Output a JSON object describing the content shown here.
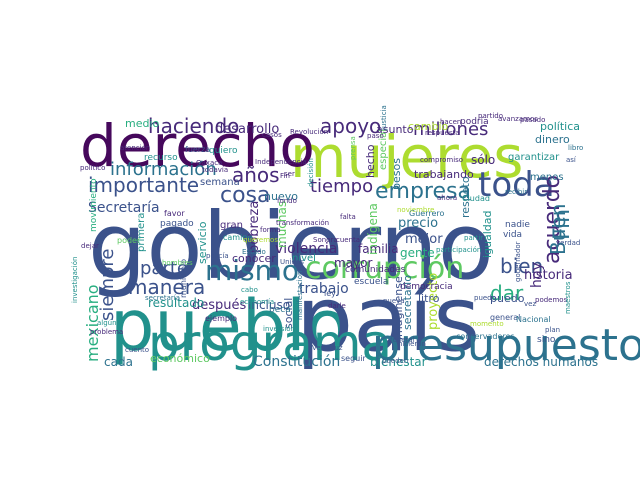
{
  "word_cloud": {
    "palette": {
      "dark_purple": "#46085c",
      "purple": "#472a7a",
      "indigo": "#3b528b",
      "blue": "#2c728e",
      "teal": "#21918c",
      "green": "#28ae80",
      "light_green": "#5ec962",
      "yellow_green": "#addc30",
      "yellow": "#c7e020"
    },
    "words": [
      {
        "text": "gobierno"
      },
      {
        "text": "pueblo"
      },
      {
        "text": "país"
      },
      {
        "text": "mujeres"
      },
      {
        "text": "derecho"
      },
      {
        "text": "programa"
      },
      {
        "text": "presupuesto"
      },
      {
        "text": "corrupción"
      },
      {
        "text": "mismo"
      },
      {
        "text": "toda"
      },
      {
        "text": "empresa"
      },
      {
        "text": "importante"
      },
      {
        "text": "información"
      },
      {
        "text": "haciendo"
      },
      {
        "text": "millones"
      },
      {
        "text": "apoyo"
      },
      {
        "text": "tiempo"
      },
      {
        "text": "acuerdo"
      },
      {
        "text": "Buen"
      },
      {
        "text": "Fin"
      },
      {
        "text": "años"
      },
      {
        "text": "cosa"
      },
      {
        "text": "manera"
      },
      {
        "text": "parte"
      },
      {
        "text": "bien"
      },
      {
        "text": "hoy"
      },
      {
        "text": "dar"
      },
      {
        "text": "siempre"
      },
      {
        "text": "mexicano"
      },
      {
        "text": "Secretaría"
      },
      {
        "text": "desarrollo"
      },
      {
        "text": "cambio"
      },
      {
        "text": "política"
      },
      {
        "text": "dinero"
      },
      {
        "text": "violencia"
      },
      {
        "text": "familia"
      },
      {
        "text": "semana"
      },
      {
        "text": "trabajo"
      },
      {
        "text": "Constitución"
      },
      {
        "text": "derechos humanos"
      },
      {
        "text": "bienestar"
      },
      {
        "text": "cada"
      },
      {
        "text": "económico"
      },
      {
        "text": "después"
      },
      {
        "text": "incluso"
      },
      {
        "text": "resultado"
      },
      {
        "text": "historia"
      },
      {
        "text": "proyecto"
      },
      {
        "text": "precio"
      },
      {
        "text": "mejor"
      },
      {
        "text": "gente"
      },
      {
        "text": "indígena"
      },
      {
        "text": "trabajando"
      },
      {
        "text": "sólo"
      },
      {
        "text": "hecho"
      },
      {
        "text": "servicio"
      },
      {
        "text": "conocer"
      },
      {
        "text": "pobreza"
      },
      {
        "text": "medio"
      },
      {
        "text": "nuevo"
      },
      {
        "text": "muchas"
      },
      {
        "text": "mayor"
      },
      {
        "text": "social"
      },
      {
        "text": "secretario"
      },
      {
        "text": "imaginense"
      },
      {
        "text": "litro"
      },
      {
        "text": "puedo"
      },
      {
        "text": "igualdad"
      },
      {
        "text": "respeto"
      },
      {
        "text": "especial"
      },
      {
        "text": "garantizar"
      },
      {
        "text": "asunto"
      },
      {
        "text": "menos"
      },
      {
        "text": "podría"
      },
      {
        "text": "quiero"
      },
      {
        "text": "fuerza"
      },
      {
        "text": "recurso"
      },
      {
        "text": "primera"
      },
      {
        "text": "pagado"
      },
      {
        "text": "gran"
      },
      {
        "text": "favor"
      },
      {
        "text": "movimiento"
      },
      {
        "text": "poder"
      },
      {
        "text": "ley"
      },
      {
        "text": "democracia"
      },
      {
        "text": "escuela"
      },
      {
        "text": "comunidades"
      },
      {
        "text": "sino"
      },
      {
        "text": "general"
      },
      {
        "text": "nadie"
      },
      {
        "text": "vida"
      },
      {
        "text": "Nacional"
      },
      {
        "text": "conservadores"
      },
      {
        "text": "seguir"
      },
      {
        "text": "ejemplo"
      },
      {
        "text": "municipio"
      },
      {
        "text": "Independencia"
      },
      {
        "text": "Revolución"
      },
      {
        "text": "pesos"
      },
      {
        "text": "libro"
      },
      {
        "text": "compromiso"
      },
      {
        "text": "justicia"
      },
      {
        "text": "partido"
      },
      {
        "text": "nivel"
      },
      {
        "text": "camino"
      },
      {
        "text": "beca"
      },
      {
        "text": "Estado"
      },
      {
        "text": "nueva"
      },
      {
        "text": "Ciudad"
      },
      {
        "text": "cuenta"
      },
      {
        "text": "Guerrero"
      },
      {
        "text": "noviembre"
      },
      {
        "text": "ahora"
      },
      {
        "text": "fondo"
      },
      {
        "text": "forma"
      },
      {
        "text": "casos"
      },
      {
        "text": "Sonora"
      },
      {
        "text": "Veracruz"
      },
      {
        "text": "Unidos"
      },
      {
        "text": "hicieron"
      },
      {
        "text": "participación"
      },
      {
        "text": "recibir"
      },
      {
        "text": "gobernador"
      },
      {
        "text": "pueden"
      },
      {
        "text": "cuento"
      },
      {
        "text": "problema"
      },
      {
        "text": "investigación"
      },
      {
        "text": "dejar"
      },
      {
        "text": "algún"
      },
      {
        "text": "falta"
      },
      {
        "text": "darle"
      },
      {
        "text": "hacen"
      },
      {
        "text": "atención"
      },
      {
        "text": "político"
      },
      {
        "text": "Oaxaca"
      },
      {
        "text": "todavía"
      },
      {
        "text": "hombres"
      },
      {
        "text": "policía"
      },
      {
        "text": "cabo"
      },
      {
        "text": "queremos"
      },
      {
        "text": "economía"
      },
      {
        "text": "pasado"
      },
      {
        "text": "plan"
      },
      {
        "text": "federal"
      },
      {
        "text": "momento"
      },
      {
        "text": "verdad"
      },
      {
        "text": "podemos"
      },
      {
        "text": "maestros"
      },
      {
        "text": "prensa"
      },
      {
        "text": "manifestación"
      },
      {
        "text": "inversión"
      },
      {
        "text": "decisión"
      },
      {
        "text": "ser"
      },
      {
        "text": "puedo"
      },
      {
        "text": "vez"
      },
      {
        "text": "partir"
      },
      {
        "text": "paso"
      },
      {
        "text": "transformación"
      },
      {
        "text": "avanzamos"
      },
      {
        "text": "respuesta"
      },
      {
        "text": "secretaría"
      },
      {
        "text": "así"
      },
      {
        "text": "Fin"
      }
    ]
  }
}
